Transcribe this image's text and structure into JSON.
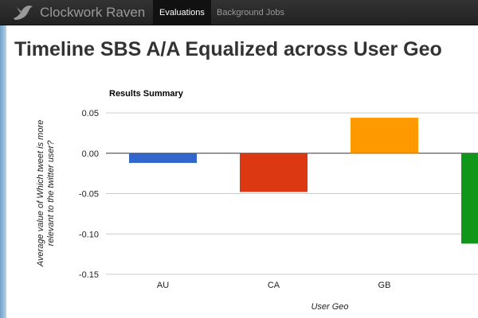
{
  "app": {
    "title": "Clockwork Raven"
  },
  "nav": {
    "items": [
      {
        "label": "Evaluations",
        "active": true
      },
      {
        "label": "Background Jobs",
        "active": false
      }
    ]
  },
  "page": {
    "title": "Timeline SBS A/A Equalized across User Geo"
  },
  "colors": {
    "navbar": "#222222",
    "rail": "#7aa8cf"
  },
  "chart_data": {
    "type": "bar",
    "title": "Results Summary",
    "xlabel": "User Geo",
    "ylabel": [
      "Average value of Which tweet is more",
      "relevant to the twitter user?"
    ],
    "categories": [
      "AU",
      "CA",
      "GB",
      ""
    ],
    "values": [
      -0.012,
      -0.048,
      0.044,
      -0.112
    ],
    "colors": [
      "#3366cc",
      "#dc3912",
      "#ff9900",
      "#109618"
    ],
    "ylim": [
      -0.15,
      0.05
    ],
    "yticks": [
      0.05,
      0.0,
      -0.05,
      -0.1,
      -0.15
    ],
    "ytick_labels": [
      "0.05",
      "0.00",
      "-0.05",
      "-0.10",
      "-0.15"
    ],
    "grid": true,
    "legend": "none"
  }
}
